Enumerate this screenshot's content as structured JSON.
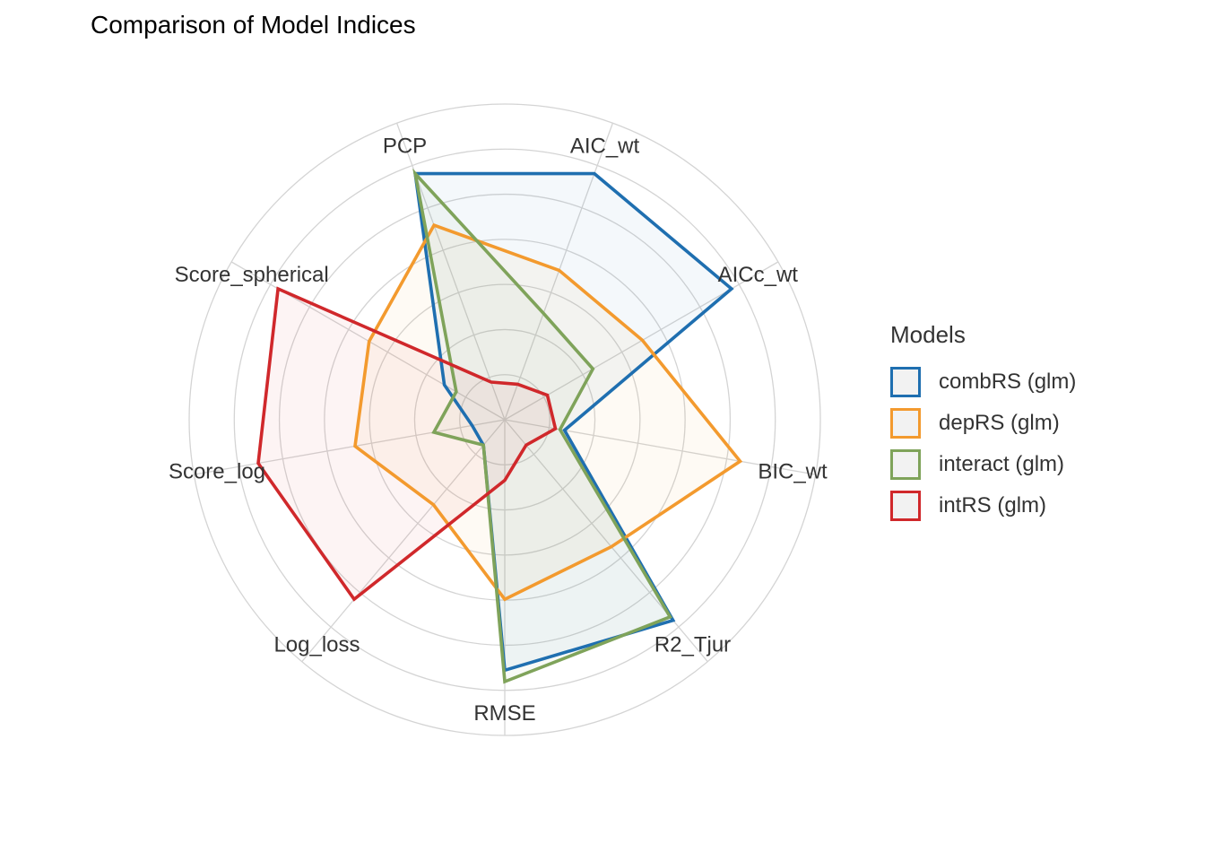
{
  "chart_data": {
    "type": "radar",
    "title": "Comparison of Model Indices",
    "axes": [
      "PCP",
      "AIC_wt",
      "AICc_wt",
      "BIC_wt",
      "R2_Tjur",
      "RMSE",
      "Log_loss",
      "Score_log",
      "Score_spherical"
    ],
    "rlim": [
      0,
      1
    ],
    "grid": true,
    "legend": {
      "title": "Models",
      "position": "right"
    },
    "series": [
      {
        "name": "combRS (glm)",
        "color": "#1F6FB0",
        "values": [
          1.0,
          1.0,
          1.0,
          0.12,
          1.0,
          0.95,
          0.0,
          0.0,
          0.16
        ]
      },
      {
        "name": "depRS (glm)",
        "color": "#F39A2E",
        "values": [
          0.76,
          0.55,
          0.55,
          0.9,
          0.58,
          0.64,
          0.34,
          0.52,
          0.54
        ]
      },
      {
        "name": "interact (glm)",
        "color": "#7FA35A",
        "values": [
          1.0,
          0.35,
          0.3,
          0.1,
          0.98,
          1.0,
          0.0,
          0.17,
          0.1
        ]
      },
      {
        "name": "intRS (glm)",
        "color": "#D0282B",
        "values": [
          0.03,
          0.02,
          0.07,
          0.08,
          0.0,
          0.12,
          0.88,
          0.95,
          1.0
        ]
      }
    ]
  }
}
